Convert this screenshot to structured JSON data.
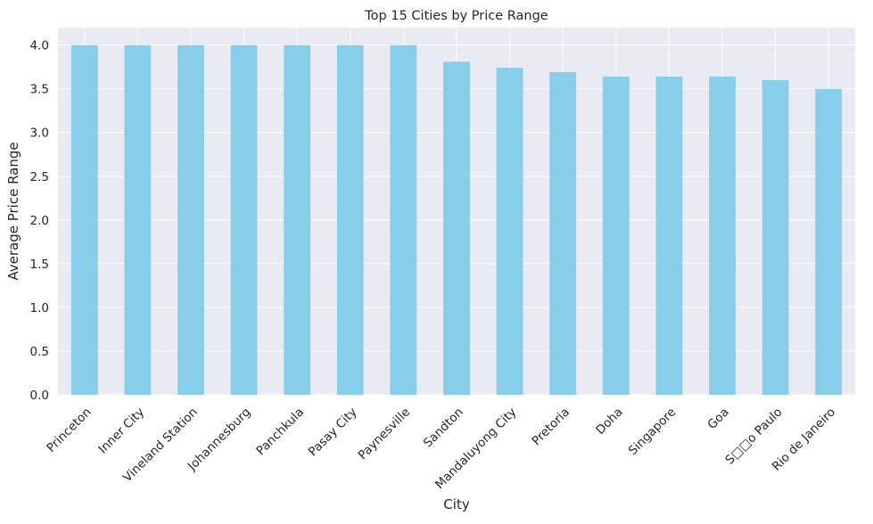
{
  "chart_data": {
    "type": "bar",
    "title": "Top 15 Cities by Price Range",
    "xlabel": "City",
    "ylabel": "Average Price Range",
    "categories": [
      "Princeton",
      "Inner City",
      "Vineland Station",
      "Johannesburg",
      "Panchkula",
      "Pasay City",
      "Paynesville",
      "Sandton",
      "Mandaluyong City",
      "Pretoria",
      "Doha",
      "Singapore",
      "Goa",
      "S□□o Paulo",
      "Rio de Janeiro"
    ],
    "values": [
      4.0,
      4.0,
      4.0,
      4.0,
      4.0,
      4.0,
      4.0,
      3.81,
      3.74,
      3.69,
      3.64,
      3.64,
      3.64,
      3.6,
      3.5
    ],
    "ylim": [
      0,
      4.2
    ],
    "yticks": [
      "0.0",
      "0.5",
      "1.0",
      "1.5",
      "2.0",
      "2.5",
      "3.0",
      "3.5",
      "4.0"
    ],
    "grid": true,
    "colors": {
      "bar": "#87ceeb",
      "plot_background": "#eaeaf2",
      "grid": "#ffffff",
      "text": "#262626"
    }
  }
}
